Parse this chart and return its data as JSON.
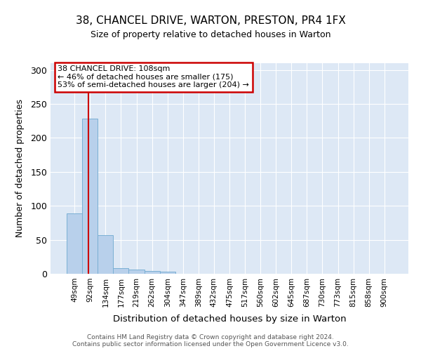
{
  "title_line1": "38, CHANCEL DRIVE, WARTON, PRESTON, PR4 1FX",
  "title_line2": "Size of property relative to detached houses in Warton",
  "xlabel": "Distribution of detached houses by size in Warton",
  "ylabel": "Number of detached properties",
  "bar_labels": [
    "49sqm",
    "92sqm",
    "134sqm",
    "177sqm",
    "219sqm",
    "262sqm",
    "304sqm",
    "347sqm",
    "389sqm",
    "432sqm",
    "475sqm",
    "517sqm",
    "560sqm",
    "602sqm",
    "645sqm",
    "687sqm",
    "730sqm",
    "773sqm",
    "815sqm",
    "858sqm",
    "900sqm"
  ],
  "bar_values": [
    89,
    228,
    57,
    8,
    6,
    4,
    3,
    0,
    0,
    0,
    0,
    0,
    0,
    0,
    0,
    0,
    0,
    0,
    0,
    0,
    0
  ],
  "bar_color": "#b8d0eb",
  "bar_edge_color": "#7aafd4",
  "vline_color": "#cc0000",
  "annotation_title": "38 CHANCEL DRIVE: 108sqm",
  "annotation_line2": "← 46% of detached houses are smaller (175)",
  "annotation_line3": "53% of semi-detached houses are larger (204) →",
  "annotation_box_facecolor": "#ffffff",
  "annotation_box_edgecolor": "#cc0000",
  "ylim": [
    0,
    310
  ],
  "yticks": [
    0,
    50,
    100,
    150,
    200,
    250,
    300
  ],
  "bg_color": "#dde8f5",
  "footer_line1": "Contains HM Land Registry data © Crown copyright and database right 2024.",
  "footer_line2": "Contains public sector information licensed under the Open Government Licence v3.0."
}
